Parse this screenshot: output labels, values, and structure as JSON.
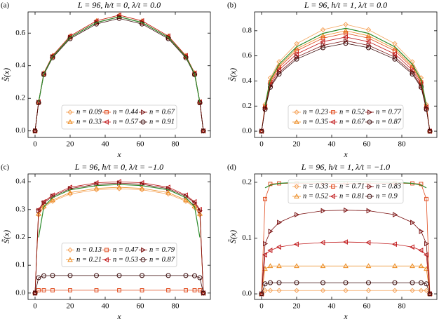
{
  "chart_data": [
    {
      "type": "line",
      "panel_label": "(a)",
      "title": "L = 96, h/t = 0, λ/t = 0.0",
      "x_label": "x",
      "y_label": "S̃(x)",
      "x": [
        0,
        2,
        5,
        10,
        20,
        35,
        48,
        61,
        76,
        86,
        91,
        94,
        96
      ],
      "xlim": [
        -4,
        100
      ],
      "xticks": [
        0,
        20,
        40,
        60,
        80
      ],
      "ylim": [
        -0.04,
        0.73
      ],
      "yticks": [
        0.0,
        0.2,
        0.4,
        0.6
      ],
      "legend_loc": "lower center",
      "series": [
        {
          "name": "n = 0.09",
          "color": "#f5a35a",
          "marker": "diamond",
          "values": [
            0,
            0.175,
            0.35,
            0.455,
            0.574,
            0.665,
            0.7,
            0.665,
            0.574,
            0.455,
            0.35,
            0.175,
            0
          ]
        },
        {
          "name": "n = 0.33",
          "color": "#ec8a1f",
          "marker": "triangle-up",
          "values": [
            0,
            0.178,
            0.355,
            0.462,
            0.582,
            0.675,
            0.71,
            0.675,
            0.582,
            0.462,
            0.355,
            0.178,
            0
          ]
        },
        {
          "name": "n = 0.44",
          "color": "#e04a1c",
          "marker": "square",
          "values": [
            0,
            0.175,
            0.35,
            0.455,
            0.574,
            0.665,
            0.7,
            0.665,
            0.574,
            0.455,
            0.35,
            0.175,
            0
          ]
        },
        {
          "name": "n = 0.57",
          "color": "#c0181a",
          "marker": "triangle-left",
          "values": [
            0,
            0.178,
            0.355,
            0.462,
            0.582,
            0.675,
            0.71,
            0.675,
            0.582,
            0.462,
            0.355,
            0.178,
            0
          ]
        },
        {
          "name": "n = 0.67",
          "color": "#7a1010",
          "marker": "triangle-right",
          "values": [
            0,
            0.175,
            0.35,
            0.455,
            0.574,
            0.665,
            0.7,
            0.665,
            0.574,
            0.455,
            0.35,
            0.175,
            0
          ]
        },
        {
          "name": "n = 0.91",
          "color": "#3a0a0a",
          "marker": "circle",
          "values": [
            0,
            0.173,
            0.345,
            0.449,
            0.566,
            0.656,
            0.69,
            0.656,
            0.566,
            0.449,
            0.345,
            0.173,
            0
          ]
        }
      ],
      "fit": {
        "color": "#2a8a2a",
        "values": [
          null,
          0.175,
          0.35,
          0.455,
          0.574,
          0.665,
          0.7,
          0.665,
          0.574,
          0.455,
          0.35,
          0.175,
          null
        ]
      }
    },
    {
      "type": "line",
      "panel_label": "(b)",
      "title": "L = 96, h/t = 1, λ/t = 0.0",
      "x_label": "x",
      "y_label": "S̃(x)",
      "x": [
        0,
        2,
        5,
        10,
        20,
        35,
        48,
        61,
        76,
        86,
        91,
        94,
        96
      ],
      "xlim": [
        -4,
        100
      ],
      "xticks": [
        0,
        20,
        40,
        60,
        80
      ],
      "ylim": [
        -0.05,
        0.95
      ],
      "yticks": [
        0.0,
        0.2,
        0.4,
        0.6,
        0.8
      ],
      "legend_loc": "lower center",
      "series": [
        {
          "name": "n = 0.23",
          "color": "#f5a35a",
          "marker": "diamond",
          "values": [
            0,
            0.213,
            0.425,
            0.553,
            0.697,
            0.808,
            0.85,
            0.808,
            0.697,
            0.553,
            0.425,
            0.213,
            0
          ]
        },
        {
          "name": "n = 0.35",
          "color": "#ec8a1f",
          "marker": "triangle-up",
          "values": [
            0,
            0.2,
            0.4,
            0.52,
            0.656,
            0.76,
            0.8,
            0.76,
            0.656,
            0.52,
            0.4,
            0.2,
            0
          ]
        },
        {
          "name": "n = 0.52",
          "color": "#e04a1c",
          "marker": "square",
          "values": [
            0,
            0.195,
            0.39,
            0.507,
            0.64,
            0.741,
            0.78,
            0.741,
            0.64,
            0.507,
            0.39,
            0.195,
            0
          ]
        },
        {
          "name": "n = 0.67",
          "color": "#c0181a",
          "marker": "triangle-left",
          "values": [
            0,
            0.188,
            0.375,
            0.488,
            0.615,
            0.713,
            0.75,
            0.713,
            0.615,
            0.488,
            0.375,
            0.188,
            0
          ]
        },
        {
          "name": "n = 0.77",
          "color": "#7a1010",
          "marker": "triangle-right",
          "values": [
            0,
            0.18,
            0.36,
            0.468,
            0.59,
            0.684,
            0.72,
            0.684,
            0.59,
            0.468,
            0.36,
            0.18,
            0
          ]
        },
        {
          "name": "n = 0.87",
          "color": "#3a0a0a",
          "marker": "circle",
          "values": [
            0,
            0.175,
            0.35,
            0.455,
            0.574,
            0.665,
            0.7,
            0.665,
            0.574,
            0.455,
            0.35,
            0.175,
            0
          ]
        }
      ],
      "fit": {
        "color": "#2a8a2a",
        "values": [
          null,
          0.205,
          0.41,
          0.533,
          0.672,
          0.779,
          0.82,
          0.779,
          0.672,
          0.533,
          0.41,
          0.205,
          null
        ]
      }
    },
    {
      "type": "line",
      "panel_label": "(c)",
      "title": "L = 96, h/t = 0, λ/t = −1.0",
      "x_label": "x",
      "y_label": "S̃(x)",
      "x": [
        0,
        2,
        5,
        10,
        20,
        35,
        48,
        61,
        76,
        86,
        91,
        94,
        96
      ],
      "xlim": [
        -4,
        100
      ],
      "xticks": [
        0,
        20,
        40,
        60,
        80
      ],
      "ylim": [
        -0.023,
        0.428
      ],
      "yticks": [
        0.0,
        0.1,
        0.2,
        0.3,
        0.4
      ],
      "legend_loc": "center",
      "series": [
        {
          "name": "n = 0.13",
          "color": "#f5a35a",
          "marker": "diamond",
          "values": [
            0,
            0.281,
            0.308,
            0.33,
            0.356,
            0.371,
            0.375,
            0.371,
            0.356,
            0.33,
            0.308,
            0.281,
            0
          ]
        },
        {
          "name": "n = 0.21",
          "color": "#ec8a1f",
          "marker": "triangle-up",
          "values": [
            0,
            0.285,
            0.312,
            0.334,
            0.361,
            0.376,
            0.38,
            0.376,
            0.361,
            0.334,
            0.312,
            0.285,
            0
          ]
        },
        {
          "name": "n = 0.47",
          "color": "#e04a1c",
          "marker": "square",
          "values": [
            0,
            0.01,
            0.01,
            0.01,
            0.01,
            0.01,
            0.01,
            0.01,
            0.01,
            0.01,
            0.01,
            0.01,
            0
          ]
        },
        {
          "name": "n = 0.53",
          "color": "#c0181a",
          "marker": "triangle-left",
          "values": [
            0,
            0.3,
            0.328,
            0.352,
            0.38,
            0.396,
            0.4,
            0.396,
            0.38,
            0.352,
            0.328,
            0.3,
            0
          ]
        },
        {
          "name": "n = 0.79",
          "color": "#7a1010",
          "marker": "triangle-right",
          "values": [
            0,
            0.296,
            0.324,
            0.348,
            0.375,
            0.391,
            0.395,
            0.391,
            0.375,
            0.348,
            0.324,
            0.296,
            0
          ]
        },
        {
          "name": "n = 0.87",
          "color": "#3a0a0a",
          "marker": "circle",
          "values": [
            0,
            0.055,
            0.062,
            0.063,
            0.063,
            0.063,
            0.063,
            0.063,
            0.063,
            0.063,
            0.062,
            0.055,
            0
          ]
        }
      ],
      "fit": {
        "color": "#2a8a2a",
        "values": [
          null,
          0.2,
          0.31,
          0.343,
          0.371,
          0.386,
          0.39,
          0.386,
          0.371,
          0.343,
          0.31,
          0.2,
          null
        ]
      }
    },
    {
      "type": "line",
      "panel_label": "(d)",
      "title": "L = 96, h/t = 1, λ/t = −1.0",
      "x_label": "x",
      "y_label": "S̃(x)",
      "x": [
        0,
        2,
        5,
        10,
        20,
        35,
        48,
        61,
        76,
        86,
        91,
        94,
        96
      ],
      "xlim": [
        -4,
        100
      ],
      "xticks": [
        0,
        20,
        40,
        60,
        80
      ],
      "ylim": [
        -0.01,
        0.215
      ],
      "yticks": [
        0.0,
        0.1,
        0.2
      ],
      "legend_loc": "upper center",
      "series": [
        {
          "name": "n = 0.33",
          "color": "#f5a35a",
          "marker": "diamond",
          "values": [
            0,
            0.006,
            0.006,
            0.006,
            0.006,
            0.006,
            0.006,
            0.006,
            0.006,
            0.006,
            0.006,
            0.006,
            0
          ]
        },
        {
          "name": "n = 0.52",
          "color": "#ec8a1f",
          "marker": "triangle-up",
          "values": [
            0,
            0.045,
            0.05,
            0.05,
            0.05,
            0.05,
            0.05,
            0.05,
            0.05,
            0.05,
            0.05,
            0.045,
            0
          ]
        },
        {
          "name": "n = 0.71",
          "color": "#e04a1c",
          "marker": "square",
          "values": [
            0,
            0.17,
            0.197,
            0.198,
            0.198,
            0.198,
            0.198,
            0.198,
            0.198,
            0.198,
            0.197,
            0.17,
            0
          ]
        },
        {
          "name": "n = 0.81",
          "color": "#c0181a",
          "marker": "triangle-left",
          "values": [
            0,
            0.07,
            0.078,
            0.084,
            0.089,
            0.092,
            0.093,
            0.092,
            0.089,
            0.084,
            0.078,
            0.07,
            0
          ]
        },
        {
          "name": "n = 0.83",
          "color": "#7a1010",
          "marker": "triangle-right",
          "values": [
            0,
            0.09,
            0.112,
            0.128,
            0.142,
            0.149,
            0.15,
            0.149,
            0.142,
            0.128,
            0.112,
            0.09,
            0
          ]
        },
        {
          "name": "n = 0.9",
          "color": "#3a0a0a",
          "marker": "circle",
          "values": [
            0,
            0.018,
            0.02,
            0.02,
            0.02,
            0.02,
            0.02,
            0.02,
            0.02,
            0.02,
            0.02,
            0.018,
            0
          ]
        }
      ],
      "fit": {
        "color": "#2a8a2a",
        "values": [
          null,
          0.19,
          0.195,
          0.198,
          0.2,
          0.201,
          0.201,
          0.201,
          0.2,
          0.198,
          0.195,
          0.19,
          null
        ]
      }
    }
  ]
}
